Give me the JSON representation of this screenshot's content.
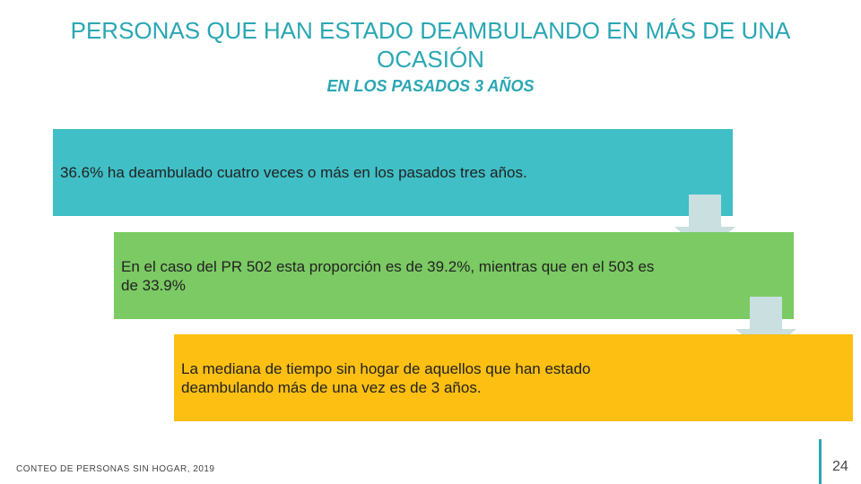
{
  "slide": {
    "title": "PERSONAS QUE HAN ESTADO DEAMBULANDO EN MÁS DE UNA OCASIÓN",
    "subtitle": "EN LOS PASADOS 3 AÑOS",
    "steps": [
      {
        "text": "36.6% ha deambulado cuatro veces o más en los pasados tres años.",
        "color": "#40bfc6"
      },
      {
        "text": "En el caso del PR 502 esta proporción es de 39.2%, mientras que en el 503 es de 33.9%",
        "color": "#7bca63"
      },
      {
        "text": "La mediana de tiempo sin hogar de aquellos que han estado deambulando más de una vez es de 3 años.",
        "color": "#fcbf12"
      }
    ],
    "arrows": [
      {
        "icon": "down-arrow-icon",
        "color": "#c9dfe0"
      },
      {
        "icon": "down-arrow-icon",
        "color": "#c9dfe0"
      }
    ],
    "footer": "CONTEO DE PERSONAS SIN HOGAR, 2019",
    "page_number": "24",
    "accent_color": "#2aa7b3"
  }
}
